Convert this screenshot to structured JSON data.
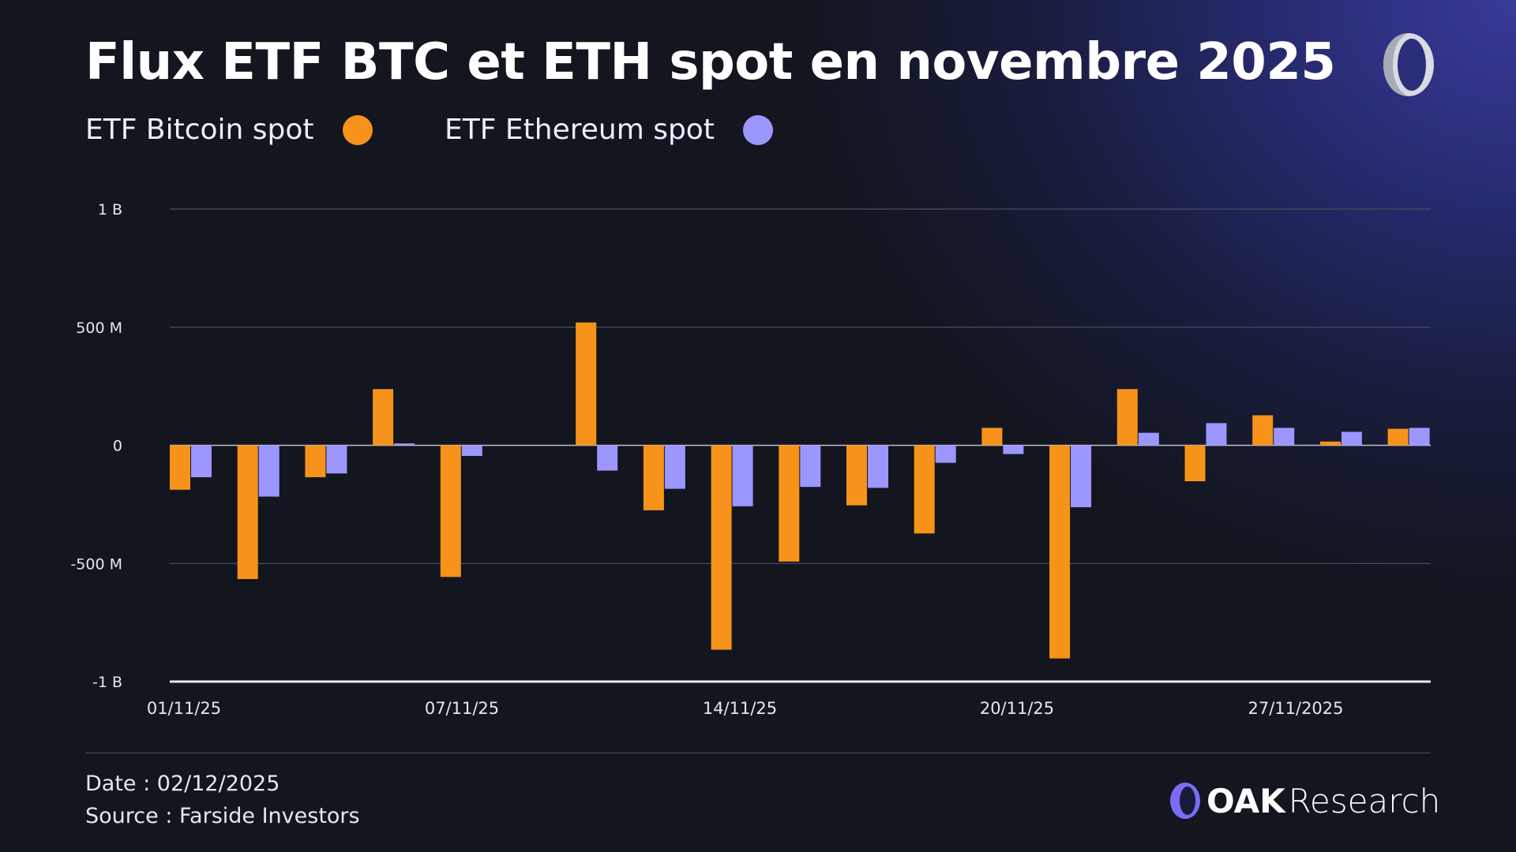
{
  "title": "Flux ETF BTC et ETH spot en novembre 2025",
  "legend": [
    {
      "label": "ETF Bitcoin spot",
      "color": "#f7931a"
    },
    {
      "label": "ETF Ethereum spot",
      "color": "#9b97ff"
    }
  ],
  "chart_data": {
    "type": "bar",
    "title": "Flux ETF BTC et ETH spot en novembre 2025",
    "xlabel": "",
    "ylabel": "",
    "ylim": [
      -1000,
      1000
    ],
    "y_unit": "M USD",
    "y_ticks": [
      {
        "value": 1000,
        "label": "1 B"
      },
      {
        "value": 500,
        "label": "500 M"
      },
      {
        "value": 0,
        "label": "0"
      },
      {
        "value": -500,
        "label": "-500 M"
      },
      {
        "value": -1000,
        "label": "-1 B"
      }
    ],
    "x_tick_labels": [
      "01/11/25",
      "07/11/25",
      "14/11/25",
      "20/11/25",
      "27/11/2025"
    ],
    "grid": true,
    "legend_position": "top-left",
    "series": [
      {
        "name": "ETF Bitcoin spot",
        "color": "#f7931a",
        "values": [
          -188,
          -566,
          -135,
          238,
          -557,
          0,
          520,
          -275,
          -865,
          -492,
          -254,
          -373,
          74,
          -902,
          238,
          -152,
          127,
          16,
          70
        ]
      },
      {
        "name": "ETF Ethereum spot",
        "color": "#9b97ff",
        "values": [
          -135,
          -217,
          -119,
          8,
          -45,
          0,
          -107,
          -184,
          -258,
          -176,
          -180,
          -74,
          -37,
          -262,
          53,
          94,
          74,
          57,
          74
        ]
      }
    ]
  },
  "footer": {
    "date": "Date : 02/12/2025",
    "source": "Source : Farside Investors",
    "brand_bold": "OAK",
    "brand_light": "Research"
  }
}
